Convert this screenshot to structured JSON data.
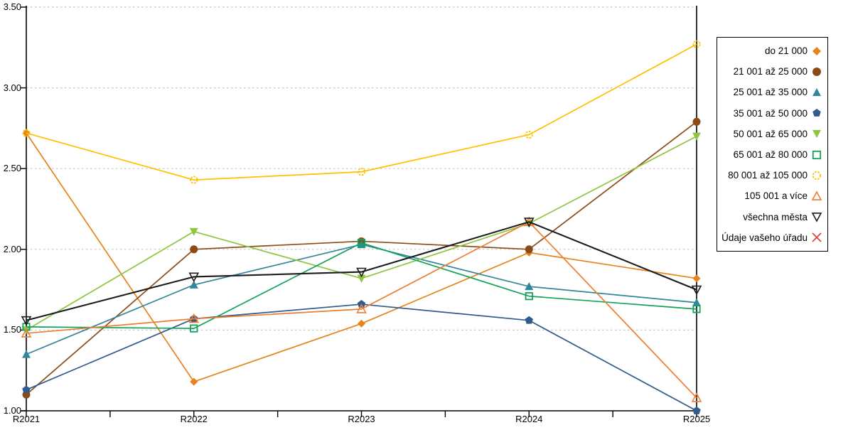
{
  "chart_data": {
    "type": "line",
    "title": "",
    "categories": [
      "R2021",
      "R2022",
      "R2023",
      "R2024",
      "R2025"
    ],
    "ylim": [
      1.0,
      3.5
    ],
    "y_ticks": [
      {
        "value": 3.5,
        "label": "3.50"
      },
      {
        "value": 3.0,
        "label": "3.00"
      },
      {
        "value": 2.5,
        "label": "2.50"
      },
      {
        "value": 2.0,
        "label": "2.00"
      },
      {
        "value": 1.5,
        "label": "1.50"
      },
      {
        "value": 1.0,
        "label": "1.00"
      }
    ],
    "grid": "horizontal-dashed",
    "grid_color": "#C6C6C6",
    "axis_color": "#000000",
    "legend_position": "right",
    "series": [
      {
        "name": "do 21 000",
        "marker": "diamond-filled",
        "color": "#E8821D",
        "values": [
          2.72,
          1.18,
          1.54,
          1.98,
          1.82
        ]
      },
      {
        "name": "21 001 až 25 000",
        "marker": "circle-filled",
        "color": "#8C4A16",
        "values": [
          1.1,
          2.0,
          2.05,
          2.0,
          2.79
        ]
      },
      {
        "name": "25 001 až 35 000",
        "marker": "triangle-up-filled",
        "color": "#31859C",
        "values": [
          1.35,
          1.78,
          2.03,
          1.77,
          1.67
        ]
      },
      {
        "name": "35 001 až 50 000",
        "marker": "pentagon-filled",
        "color": "#315A8D",
        "values": [
          1.13,
          1.57,
          1.66,
          1.56,
          1.0
        ]
      },
      {
        "name": "50 001 až 65 000",
        "marker": "triangle-down-filled",
        "color": "#8DC63F",
        "values": [
          1.5,
          2.11,
          1.82,
          2.16,
          2.7
        ]
      },
      {
        "name": "65 001 až 80 000",
        "marker": "square-open",
        "color": "#12A35B",
        "values": [
          1.52,
          1.51,
          2.04,
          1.71,
          1.63
        ]
      },
      {
        "name": "80 001 až 105 000",
        "marker": "circle-open",
        "color": "#FFC000",
        "values": [
          2.72,
          2.43,
          2.48,
          2.71,
          3.27
        ]
      },
      {
        "name": "105 001 a více",
        "marker": "triangle-up-open",
        "color": "#ED7D31",
        "values": [
          1.48,
          1.57,
          1.63,
          2.17,
          1.08
        ]
      },
      {
        "name": "všechna města",
        "marker": "triangle-down-open",
        "color": "#1C1C1C",
        "values": [
          1.56,
          1.83,
          1.86,
          2.17,
          1.75
        ]
      },
      {
        "name": "Údaje vašeho úřadu",
        "marker": "x",
        "color": "#DD3B34",
        "values": [
          null,
          null,
          null,
          null,
          null
        ]
      }
    ]
  }
}
